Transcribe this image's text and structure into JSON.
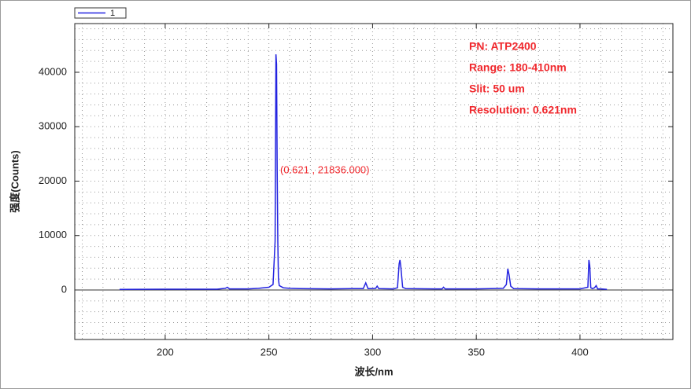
{
  "chart_data": {
    "type": "line",
    "xlabel": "波长/nm",
    "ylabel": "强度(Counts)",
    "annotations": [
      "PN: ATP2400",
      "Range: 180-410nm",
      "Slit: 50 um",
      "Resolution: 0.621nm"
    ],
    "point_label": "(0.621 , 21836.000)",
    "x": [
      178,
      200,
      225,
      229,
      230,
      231,
      240,
      245,
      250,
      252,
      253,
      253.4,
      253.7,
      254,
      254.3,
      254.6,
      255,
      257,
      260,
      265,
      280,
      290,
      295.5,
      296.7,
      297.8,
      300,
      301.5,
      302.2,
      303,
      310,
      312,
      312.8,
      313.2,
      313.6,
      314.5,
      316,
      330,
      333.5,
      334.2,
      335,
      350,
      363,
      364.5,
      365.2,
      365.8,
      366.6,
      368,
      380,
      400,
      403.8,
      404.3,
      404.7,
      405.2,
      406,
      407,
      407.8,
      408.5,
      410,
      413
    ],
    "series": [
      {
        "name": "1",
        "color": "#2323e0",
        "values": [
          100,
          150,
          150,
          300,
          500,
          200,
          200,
          300,
          500,
          1000,
          9000,
          43300,
          41500,
          22000,
          9000,
          2000,
          800,
          400,
          300,
          250,
          200,
          250,
          250,
          1300,
          250,
          250,
          300,
          700,
          250,
          200,
          400,
          4800,
          5500,
          4300,
          500,
          250,
          200,
          200,
          500,
          200,
          200,
          300,
          1000,
          3900,
          2800,
          700,
          250,
          200,
          200,
          500,
          5500,
          4500,
          400,
          250,
          400,
          800,
          200,
          200,
          100
        ]
      }
    ],
    "xlim": [
      156.4,
      444.8
    ],
    "ylim": [
      -9100,
      48950
    ],
    "xticks": [
      200,
      250,
      300,
      350,
      400
    ],
    "yticks": [
      0,
      10000,
      20000,
      30000,
      40000
    ],
    "grid": true,
    "annotation_color": "#f0282d"
  }
}
